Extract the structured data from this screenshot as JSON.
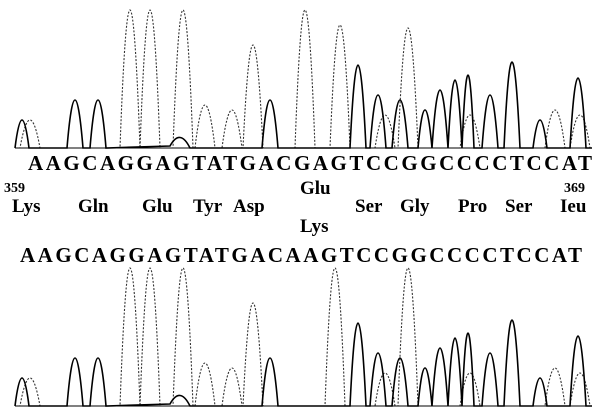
{
  "top_sequence": "AAGCAGGAGTATGACGAGTCCGGCCCCTCCAT",
  "residue_numbers": {
    "first": 359,
    "last": 369
  },
  "residues": [
    "Lys",
    "Gln",
    "Glu",
    "Tyr",
    "Asp",
    {
      "upper": "Glu",
      "lower": "Lys"
    },
    "Ser",
    "Gly",
    "Pro",
    "Ser",
    "Ieu"
  ],
  "bottom_sequence": "AAGCAGGAGTATGACAAGTCCGGCCCCTCCAT"
}
